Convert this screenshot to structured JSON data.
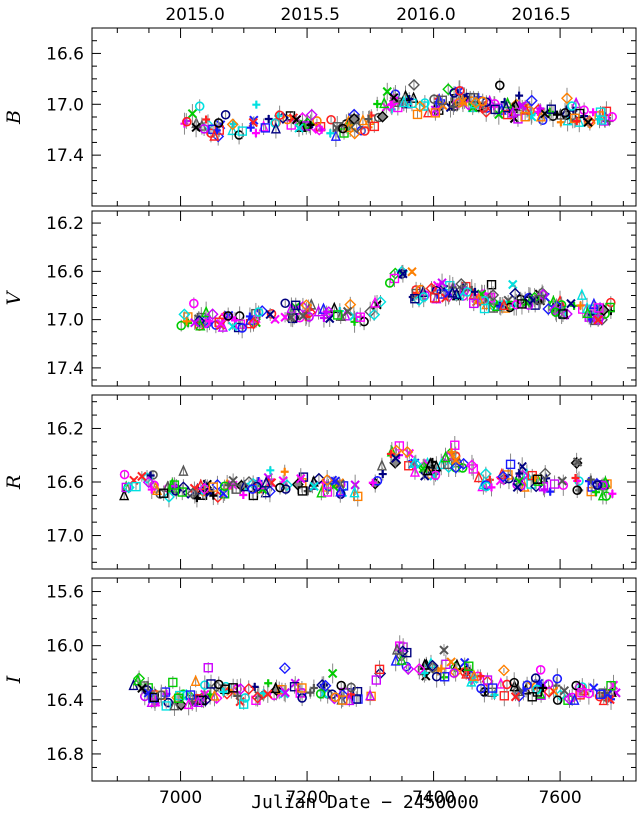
{
  "chart_data": {
    "type": "scatter",
    "xlabel": "Julian Date − 2450000",
    "x_ticks": [
      7000,
      7200,
      7400,
      7600
    ],
    "xlim": [
      6860,
      7720
    ],
    "top_axis": {
      "ticks": [
        "2015.0",
        "2015.5",
        "2016.0",
        "2016.5"
      ],
      "jd": [
        7023,
        7205,
        7388,
        7570
      ]
    },
    "panels": [
      {
        "band": "B",
        "ylim": [
          16.4,
          17.8
        ],
        "y_ticks": [
          "16.6",
          "17.0",
          "17.4"
        ],
        "y_tick_values": [
          16.6,
          17.0,
          17.4
        ],
        "anchors": [
          [
            7000,
            17.17
          ],
          [
            7050,
            17.2
          ],
          [
            7100,
            17.2
          ],
          [
            7150,
            17.15
          ],
          [
            7200,
            17.12
          ],
          [
            7250,
            17.2
          ],
          [
            7300,
            17.15
          ],
          [
            7330,
            17.0
          ],
          [
            7350,
            16.95
          ],
          [
            7380,
            17.05
          ],
          [
            7410,
            17.0
          ],
          [
            7440,
            16.95
          ],
          [
            7480,
            17.0
          ],
          [
            7520,
            17.05
          ],
          [
            7560,
            17.08
          ],
          [
            7600,
            17.1
          ],
          [
            7650,
            17.1
          ],
          [
            7690,
            17.12
          ]
        ]
      },
      {
        "band": "V",
        "ylim": [
          16.1,
          17.55
        ],
        "y_ticks": [
          "16.2",
          "16.6",
          "17.0",
          "17.4"
        ],
        "y_tick_values": [
          16.2,
          16.6,
          17.0,
          17.4
        ],
        "anchors": [
          [
            7000,
            17.0
          ],
          [
            7050,
            17.0
          ],
          [
            7100,
            17.02
          ],
          [
            7150,
            16.95
          ],
          [
            7200,
            16.92
          ],
          [
            7250,
            16.97
          ],
          [
            7300,
            16.98
          ],
          [
            7330,
            16.7
          ],
          [
            7350,
            16.65
          ],
          [
            7370,
            16.78
          ],
          [
            7400,
            16.78
          ],
          [
            7440,
            16.75
          ],
          [
            7480,
            16.85
          ],
          [
            7520,
            16.85
          ],
          [
            7560,
            16.82
          ],
          [
            7600,
            16.9
          ],
          [
            7650,
            16.95
          ],
          [
            7690,
            16.95
          ]
        ]
      },
      {
        "band": "R",
        "ylim": [
          15.95,
          17.25
        ],
        "y_ticks": [
          "16.2",
          "16.6",
          "17.0"
        ],
        "y_tick_values": [
          16.2,
          16.6,
          17.0
        ],
        "anchors": [
          [
            6910,
            16.65
          ],
          [
            6940,
            16.55
          ],
          [
            6970,
            16.65
          ],
          [
            7000,
            16.67
          ],
          [
            7050,
            16.67
          ],
          [
            7100,
            16.65
          ],
          [
            7150,
            16.62
          ],
          [
            7200,
            16.62
          ],
          [
            7250,
            16.65
          ],
          [
            7300,
            16.65
          ],
          [
            7330,
            16.45
          ],
          [
            7350,
            16.35
          ],
          [
            7370,
            16.5
          ],
          [
            7400,
            16.5
          ],
          [
            7440,
            16.45
          ],
          [
            7480,
            16.6
          ],
          [
            7520,
            16.58
          ],
          [
            7560,
            16.6
          ],
          [
            7600,
            16.62
          ],
          [
            7650,
            16.63
          ],
          [
            7690,
            16.67
          ]
        ]
      },
      {
        "band": "I",
        "ylim": [
          15.5,
          17.0
        ],
        "y_ticks": [
          "15.6",
          "16.0",
          "16.4",
          "16.8"
        ],
        "y_tick_values": [
          15.6,
          16.0,
          16.4,
          16.8
        ],
        "anchors": [
          [
            6920,
            16.25
          ],
          [
            6960,
            16.38
          ],
          [
            7000,
            16.4
          ],
          [
            7050,
            16.33
          ],
          [
            7100,
            16.38
          ],
          [
            7150,
            16.32
          ],
          [
            7200,
            16.33
          ],
          [
            7250,
            16.35
          ],
          [
            7300,
            16.35
          ],
          [
            7330,
            16.1
          ],
          [
            7350,
            16.05
          ],
          [
            7370,
            16.2
          ],
          [
            7400,
            16.2
          ],
          [
            7440,
            16.15
          ],
          [
            7480,
            16.3
          ],
          [
            7520,
            16.32
          ],
          [
            7560,
            16.32
          ],
          [
            7600,
            16.35
          ],
          [
            7650,
            16.35
          ],
          [
            7690,
            16.35
          ]
        ]
      }
    ],
    "series_colors": [
      "#000000",
      "#555555",
      "#1a1aff",
      "#ff2020",
      "#ff8000",
      "#00cc00",
      "#cc00ff",
      "#00e0e0",
      "#ff00ff",
      "#000080"
    ]
  }
}
